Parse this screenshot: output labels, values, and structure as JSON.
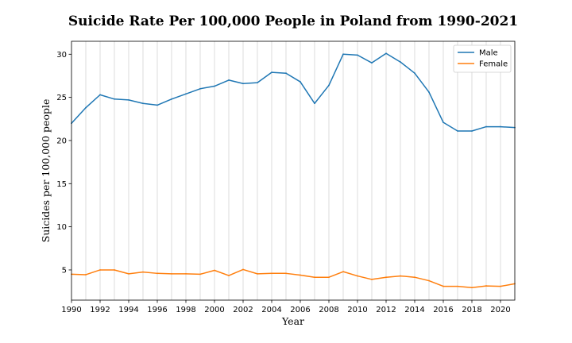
{
  "chart_data": {
    "type": "line",
    "title": "Suicide Rate Per 100,000 People in Poland from 1990-2021",
    "xlabel": "Year",
    "ylabel": "Suicides per 100,000 people",
    "xlim": [
      1990,
      2021
    ],
    "ylim": [
      1.5,
      31.5
    ],
    "xticks": [
      1990,
      1992,
      1994,
      1996,
      1998,
      2000,
      2002,
      2004,
      2006,
      2008,
      2010,
      2012,
      2014,
      2016,
      2018,
      2020
    ],
    "yticks": [
      5,
      10,
      15,
      20,
      25,
      30
    ],
    "grid": "vertical",
    "legend_position": "top-right",
    "x": [
      1990,
      1991,
      1992,
      1993,
      1994,
      1995,
      1996,
      1997,
      1998,
      1999,
      2000,
      2001,
      2002,
      2003,
      2004,
      2005,
      2006,
      2007,
      2008,
      2009,
      2010,
      2011,
      2012,
      2013,
      2014,
      2015,
      2016,
      2017,
      2018,
      2019,
      2020,
      2021
    ],
    "series": [
      {
        "name": "Male",
        "color": "#1f77b4",
        "values": [
          22.0,
          23.8,
          25.3,
          24.8,
          24.7,
          24.3,
          24.1,
          24.8,
          25.4,
          26.0,
          26.3,
          27.0,
          26.6,
          26.7,
          27.9,
          27.8,
          26.8,
          24.3,
          26.4,
          30.0,
          29.9,
          29.0,
          30.1,
          29.1,
          27.8,
          25.6,
          22.1,
          21.1,
          21.1,
          21.6,
          21.6,
          21.5
        ]
      },
      {
        "name": "Female",
        "color": "#ff7f0e",
        "values": [
          4.5,
          4.45,
          5.0,
          5.0,
          4.55,
          4.75,
          4.6,
          4.55,
          4.55,
          4.5,
          4.95,
          4.35,
          5.05,
          4.55,
          4.6,
          4.6,
          4.4,
          4.15,
          4.15,
          4.8,
          4.3,
          3.9,
          4.15,
          4.3,
          4.15,
          3.75,
          3.1,
          3.1,
          2.95,
          3.15,
          3.1,
          3.4
        ]
      }
    ]
  }
}
